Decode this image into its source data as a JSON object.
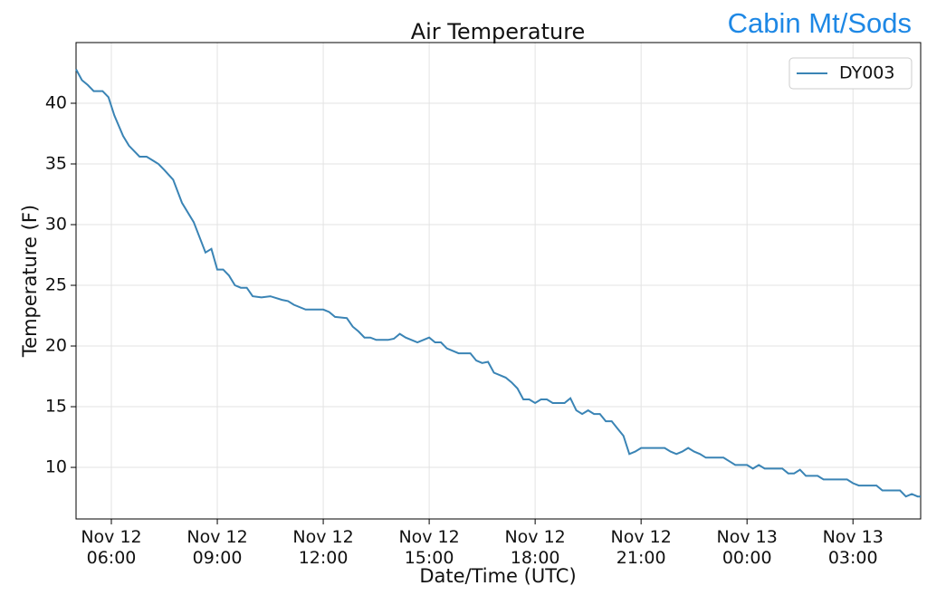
{
  "chart_data": {
    "type": "line",
    "title": "Air Temperature",
    "annotation": "Cabin Mt/Sods",
    "xlabel": "Date/Time (UTC)",
    "ylabel": "Temperature (F)",
    "x": [
      "Nov 12 05:00",
      "Nov 12 05:10",
      "Nov 12 05:20",
      "Nov 12 05:30",
      "Nov 12 05:45",
      "Nov 12 05:55",
      "Nov 12 06:05",
      "Nov 12 06:20",
      "Nov 12 06:30",
      "Nov 12 06:48",
      "Nov 12 07:00",
      "Nov 12 07:10",
      "Nov 12 07:20",
      "Nov 12 07:30",
      "Nov 12 07:45",
      "Nov 12 08:00",
      "Nov 12 08:20",
      "Nov 12 08:40",
      "Nov 12 08:50",
      "Nov 12 09:00",
      "Nov 12 09:10",
      "Nov 12 09:20",
      "Nov 12 09:30",
      "Nov 12 09:40",
      "Nov 12 09:50",
      "Nov 12 10:00",
      "Nov 12 10:15",
      "Nov 12 10:30",
      "Nov 12 10:50",
      "Nov 12 11:00",
      "Nov 12 11:10",
      "Nov 12 11:30",
      "Nov 12 12:00",
      "Nov 12 12:10",
      "Nov 12 12:20",
      "Nov 12 12:40",
      "Nov 12 12:50",
      "Nov 12 13:00",
      "Nov 12 13:10",
      "Nov 12 13:20",
      "Nov 12 13:30",
      "Nov 12 13:50",
      "Nov 12 14:00",
      "Nov 12 14:10",
      "Nov 12 14:20",
      "Nov 12 14:40",
      "Nov 12 15:00",
      "Nov 12 15:10",
      "Nov 12 15:20",
      "Nov 12 15:30",
      "Nov 12 15:50",
      "Nov 12 16:10",
      "Nov 12 16:20",
      "Nov 12 16:30",
      "Nov 12 16:40",
      "Nov 12 16:50",
      "Nov 12 17:00",
      "Nov 12 17:10",
      "Nov 12 17:20",
      "Nov 12 17:30",
      "Nov 12 17:40",
      "Nov 12 17:50",
      "Nov 12 18:00",
      "Nov 12 18:10",
      "Nov 12 18:20",
      "Nov 12 18:30",
      "Nov 12 18:50",
      "Nov 12 19:00",
      "Nov 12 19:10",
      "Nov 12 19:20",
      "Nov 12 19:30",
      "Nov 12 19:40",
      "Nov 12 19:50",
      "Nov 12 20:00",
      "Nov 12 20:10",
      "Nov 12 20:20",
      "Nov 12 20:30",
      "Nov 12 20:40",
      "Nov 12 20:50",
      "Nov 12 21:00",
      "Nov 12 21:40",
      "Nov 12 21:50",
      "Nov 12 22:00",
      "Nov 12 22:10",
      "Nov 12 22:20",
      "Nov 12 22:30",
      "Nov 12 22:40",
      "Nov 12 22:50",
      "Nov 12 23:20",
      "Nov 12 23:30",
      "Nov 12 23:40",
      "Nov 13 00:00",
      "Nov 13 00:10",
      "Nov 13 00:20",
      "Nov 13 00:30",
      "Nov 13 01:00",
      "Nov 13 01:10",
      "Nov 13 01:20",
      "Nov 13 01:30",
      "Nov 13 01:40",
      "Nov 13 02:00",
      "Nov 13 02:10",
      "Nov 13 02:50",
      "Nov 13 03:00",
      "Nov 13 03:10",
      "Nov 13 03:40",
      "Nov 13 03:50",
      "Nov 13 04:20",
      "Nov 13 04:30",
      "Nov 13 04:40",
      "Nov 13 04:50",
      "Nov 13 04:55"
    ],
    "series": [
      {
        "name": "DY003",
        "color": "#3a84b5",
        "values": [
          42.8,
          41.9,
          41.5,
          41.0,
          41.0,
          40.5,
          39.0,
          37.3,
          36.5,
          35.6,
          35.6,
          35.3,
          35.0,
          34.5,
          33.7,
          31.8,
          30.2,
          27.7,
          28.0,
          26.3,
          26.3,
          25.8,
          25.0,
          24.8,
          24.8,
          24.1,
          24.0,
          24.1,
          23.8,
          23.7,
          23.4,
          23.0,
          23.0,
          22.8,
          22.4,
          22.3,
          21.6,
          21.2,
          20.7,
          20.7,
          20.5,
          20.5,
          20.6,
          21.0,
          20.7,
          20.3,
          20.7,
          20.3,
          20.3,
          19.8,
          19.4,
          19.4,
          18.8,
          18.6,
          18.7,
          17.8,
          17.6,
          17.4,
          17.0,
          16.5,
          15.6,
          15.6,
          15.3,
          15.6,
          15.6,
          15.3,
          15.3,
          15.7,
          14.7,
          14.4,
          14.7,
          14.4,
          14.4,
          13.8,
          13.8,
          13.2,
          12.6,
          11.1,
          11.3,
          11.6,
          11.6,
          11.3,
          11.1,
          11.3,
          11.6,
          11.3,
          11.1,
          10.8,
          10.8,
          10.5,
          10.2,
          10.2,
          9.9,
          10.2,
          9.9,
          9.9,
          9.5,
          9.5,
          9.8,
          9.3,
          9.3,
          9.0,
          9.0,
          8.7,
          8.5,
          8.5,
          8.1,
          8.1,
          7.6,
          7.8,
          7.6,
          7.6
        ]
      }
    ],
    "xlim": [
      "Nov 12 05:00",
      "Nov 13 04:55"
    ],
    "xticks": [
      "Nov 12 06:00",
      "Nov 12 09:00",
      "Nov 12 12:00",
      "Nov 12 15:00",
      "Nov 12 18:00",
      "Nov 12 21:00",
      "Nov 13 00:00",
      "Nov 13 03:00"
    ],
    "ylim": [
      5.75,
      45
    ],
    "yticks": [
      10,
      15,
      20,
      25,
      30,
      35,
      40
    ],
    "grid": true,
    "legend": "upper-right"
  }
}
